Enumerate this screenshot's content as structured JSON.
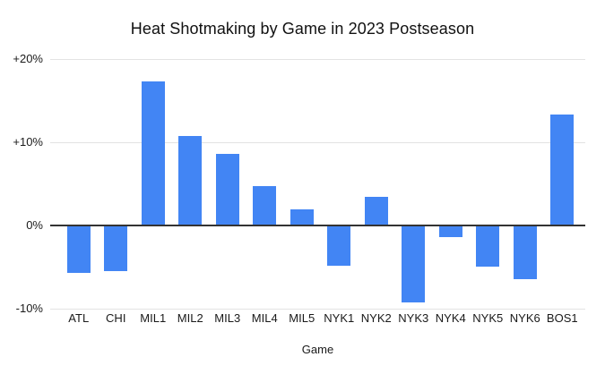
{
  "chart_data": {
    "type": "bar",
    "title": "Heat Shotmaking by Game in 2023 Postseason",
    "xlabel": "Game",
    "ylabel": "",
    "categories": [
      "ATL",
      "CHI",
      "MIL1",
      "MIL2",
      "MIL3",
      "MIL4",
      "MIL5",
      "NYK1",
      "NYK2",
      "NYK3",
      "NYK4",
      "NYK5",
      "NYK6",
      "BOS1"
    ],
    "values": [
      -5.7,
      -5.5,
      17.3,
      10.7,
      8.6,
      4.7,
      1.9,
      -4.8,
      3.4,
      -9.2,
      -1.4,
      -4.9,
      -6.4,
      13.3
    ],
    "ylim": [
      -10,
      20
    ],
    "yticks": [
      {
        "value": 20,
        "label": "+20%"
      },
      {
        "value": 10,
        "label": "+10%"
      },
      {
        "value": 0,
        "label": "0%"
      },
      {
        "value": -10,
        "label": "-10%"
      }
    ],
    "grid": true,
    "legend": "none",
    "bar_color": "#4285f4",
    "axis_color": "#333333",
    "gridline_color": "#e3e3e3",
    "background": "#ffffff"
  }
}
